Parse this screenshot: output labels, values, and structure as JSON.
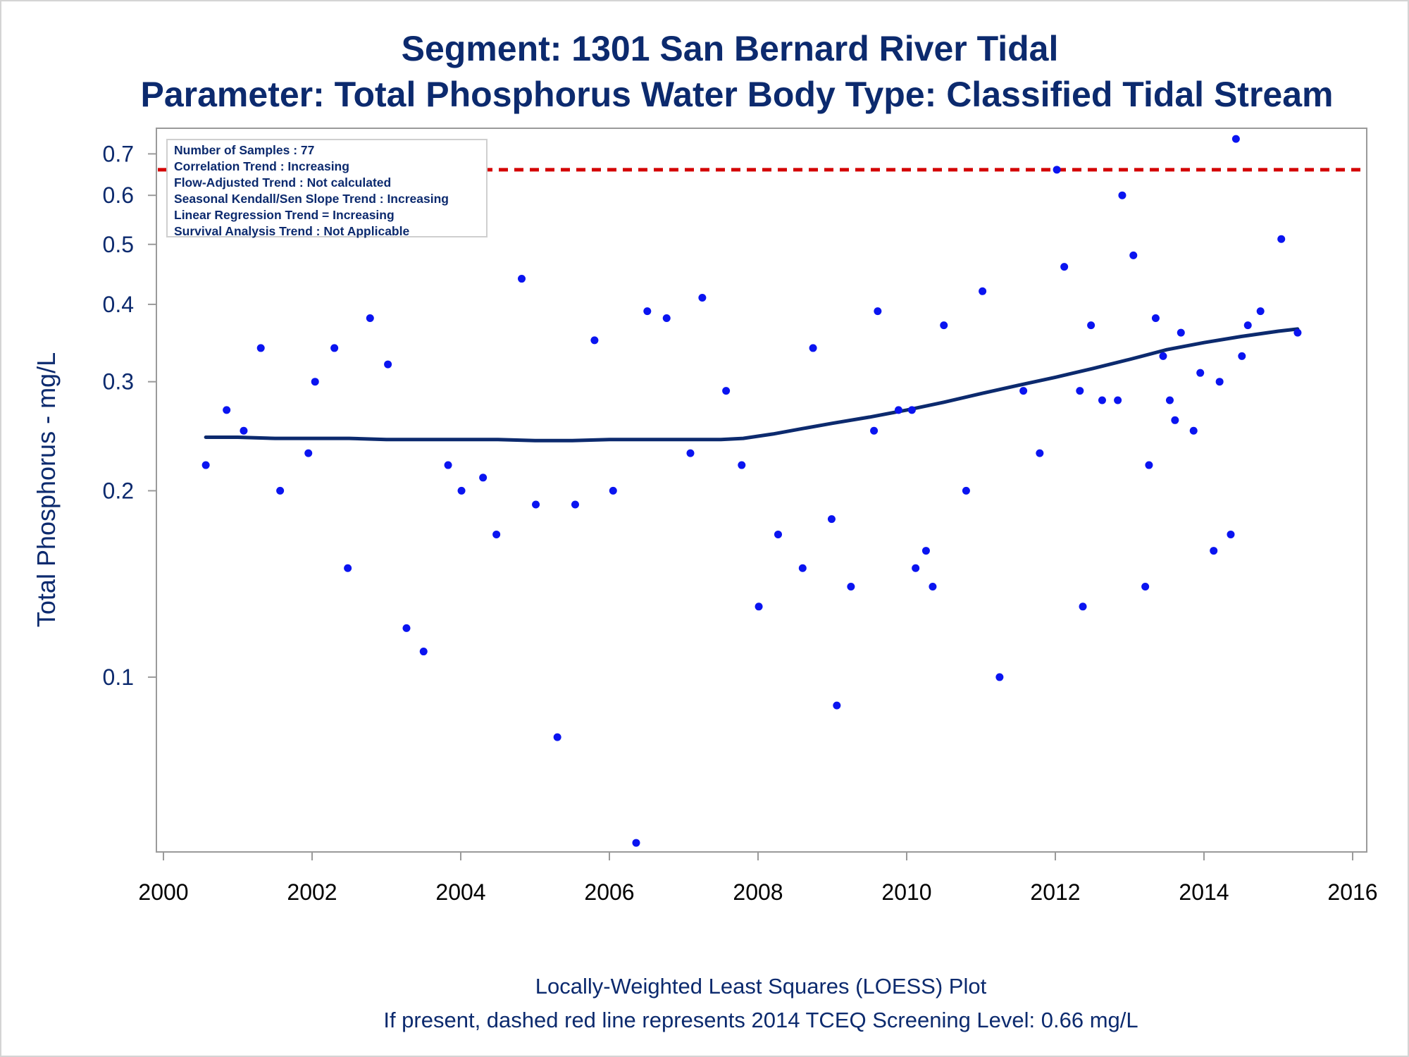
{
  "title": "Segment: 1301  San Bernard River Tidal",
  "subtitle": "Parameter: Total Phosphorus   Water Body Type: Classified Tidal Stream",
  "footnotes": [
    "Locally-Weighted Least Squares (LOESS) Plot",
    "If present, dashed red line represents 2014 TCEQ Screening Level: 0.66 mg/L"
  ],
  "info_box": [
    "Number of Samples : 77",
    "Correlation Trend : Increasing",
    "Flow-Adjusted Trend : Not calculated",
    "Seasonal Kendall/Sen Slope Trend : Increasing",
    "Linear Regression Trend = Increasing",
    "Survival Analysis Trend : Not Applicable"
  ],
  "chart_data": {
    "type": "scatter",
    "ylabel": "Total Phosphorus - mg/L",
    "xlabel": "",
    "y_scale": "log",
    "xlim": [
      2000,
      2016
    ],
    "ylim": [
      0.05,
      0.75
    ],
    "x_ticks": [
      2000,
      2002,
      2004,
      2006,
      2008,
      2010,
      2012,
      2014,
      2016
    ],
    "y_ticks": [
      0.1,
      0.2,
      0.3,
      0.4,
      0.5,
      0.6,
      0.7
    ],
    "grid": false,
    "colors": {
      "points": "#0a14f0",
      "loess": "#0c2a6e",
      "screening": "#d40000",
      "text": "#0c2a6e"
    },
    "screening_level": 0.66,
    "points": [
      [
        2000.57,
        0.22
      ],
      [
        2000.85,
        0.27
      ],
      [
        2001.08,
        0.25
      ],
      [
        2001.31,
        0.34
      ],
      [
        2001.57,
        0.2
      ],
      [
        2001.95,
        0.23
      ],
      [
        2002.04,
        0.3
      ],
      [
        2002.3,
        0.34
      ],
      [
        2002.48,
        0.15
      ],
      [
        2002.78,
        0.38
      ],
      [
        2003.02,
        0.32
      ],
      [
        2003.27,
        0.12
      ],
      [
        2003.5,
        0.11
      ],
      [
        2003.83,
        0.22
      ],
      [
        2004.01,
        0.2
      ],
      [
        2004.3,
        0.21
      ],
      [
        2004.48,
        0.17
      ],
      [
        2004.82,
        0.44
      ],
      [
        2005.01,
        0.19
      ],
      [
        2005.3,
        0.08
      ],
      [
        2005.54,
        0.19
      ],
      [
        2005.8,
        0.35
      ],
      [
        2006.05,
        0.2
      ],
      [
        2006.36,
        0.054
      ],
      [
        2006.51,
        0.39
      ],
      [
        2006.77,
        0.38
      ],
      [
        2007.09,
        0.23
      ],
      [
        2007.25,
        0.41
      ],
      [
        2007.57,
        0.29
      ],
      [
        2007.78,
        0.22
      ],
      [
        2008.01,
        0.13
      ],
      [
        2008.27,
        0.17
      ],
      [
        2008.6,
        0.15
      ],
      [
        2008.74,
        0.34
      ],
      [
        2008.99,
        0.18
      ],
      [
        2009.06,
        0.09
      ],
      [
        2009.25,
        0.14
      ],
      [
        2009.56,
        0.25
      ],
      [
        2009.61,
        0.39
      ],
      [
        2009.89,
        0.27
      ],
      [
        2010.07,
        0.27
      ],
      [
        2010.12,
        0.15
      ],
      [
        2010.26,
        0.16
      ],
      [
        2010.35,
        0.14
      ],
      [
        2010.5,
        0.37
      ],
      [
        2010.8,
        0.2
      ],
      [
        2011.02,
        0.42
      ],
      [
        2011.25,
        0.1
      ],
      [
        2011.57,
        0.29
      ],
      [
        2011.79,
        0.23
      ],
      [
        2012.02,
        0.66
      ],
      [
        2012.12,
        0.46
      ],
      [
        2012.33,
        0.29
      ],
      [
        2012.37,
        0.13
      ],
      [
        2012.48,
        0.37
      ],
      [
        2012.63,
        0.28
      ],
      [
        2012.84,
        0.28
      ],
      [
        2012.9,
        0.6
      ],
      [
        2013.05,
        0.48
      ],
      [
        2013.21,
        0.14
      ],
      [
        2013.26,
        0.22
      ],
      [
        2013.35,
        0.38
      ],
      [
        2013.45,
        0.33
      ],
      [
        2013.54,
        0.28
      ],
      [
        2013.61,
        0.26
      ],
      [
        2013.69,
        0.36
      ],
      [
        2013.86,
        0.25
      ],
      [
        2013.95,
        0.31
      ],
      [
        2014.13,
        0.16
      ],
      [
        2014.21,
        0.3
      ],
      [
        2014.36,
        0.17
      ],
      [
        2014.43,
        0.74
      ],
      [
        2014.51,
        0.33
      ],
      [
        2014.59,
        0.37
      ],
      [
        2014.76,
        0.39
      ],
      [
        2015.04,
        0.51
      ],
      [
        2015.26,
        0.36
      ]
    ],
    "loess": [
      [
        2000.57,
        0.244
      ],
      [
        2001.0,
        0.244
      ],
      [
        2001.5,
        0.243
      ],
      [
        2002.0,
        0.243
      ],
      [
        2002.5,
        0.243
      ],
      [
        2003.0,
        0.242
      ],
      [
        2003.5,
        0.242
      ],
      [
        2004.0,
        0.242
      ],
      [
        2004.5,
        0.242
      ],
      [
        2005.0,
        0.241
      ],
      [
        2005.5,
        0.241
      ],
      [
        2006.0,
        0.242
      ],
      [
        2006.5,
        0.242
      ],
      [
        2007.0,
        0.242
      ],
      [
        2007.5,
        0.242
      ],
      [
        2007.8,
        0.243
      ],
      [
        2008.2,
        0.247
      ],
      [
        2008.6,
        0.252
      ],
      [
        2009.0,
        0.257
      ],
      [
        2009.5,
        0.263
      ],
      [
        2010.0,
        0.27
      ],
      [
        2010.5,
        0.278
      ],
      [
        2011.0,
        0.287
      ],
      [
        2011.5,
        0.296
      ],
      [
        2012.0,
        0.305
      ],
      [
        2012.5,
        0.315
      ],
      [
        2013.0,
        0.326
      ],
      [
        2013.5,
        0.338
      ],
      [
        2014.0,
        0.347
      ],
      [
        2014.5,
        0.355
      ],
      [
        2015.0,
        0.362
      ],
      [
        2015.26,
        0.365
      ]
    ]
  }
}
